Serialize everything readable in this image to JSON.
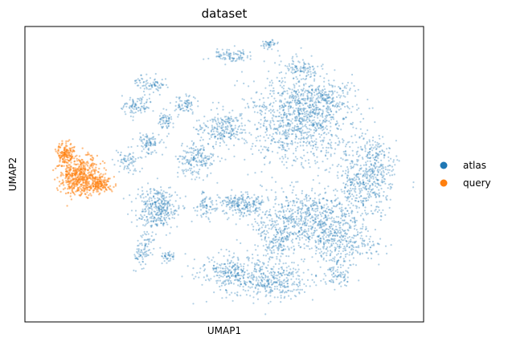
{
  "chart_data": {
    "type": "scatter",
    "title": "dataset",
    "xlabel": "UMAP1",
    "ylabel": "UMAP2",
    "xticks": [],
    "yticks": [],
    "grid": false,
    "legend_position": "right",
    "series": [
      {
        "name": "atlas",
        "color": "#1f77b4"
      },
      {
        "name": "query",
        "color": "#ff7f0e"
      }
    ]
  }
}
